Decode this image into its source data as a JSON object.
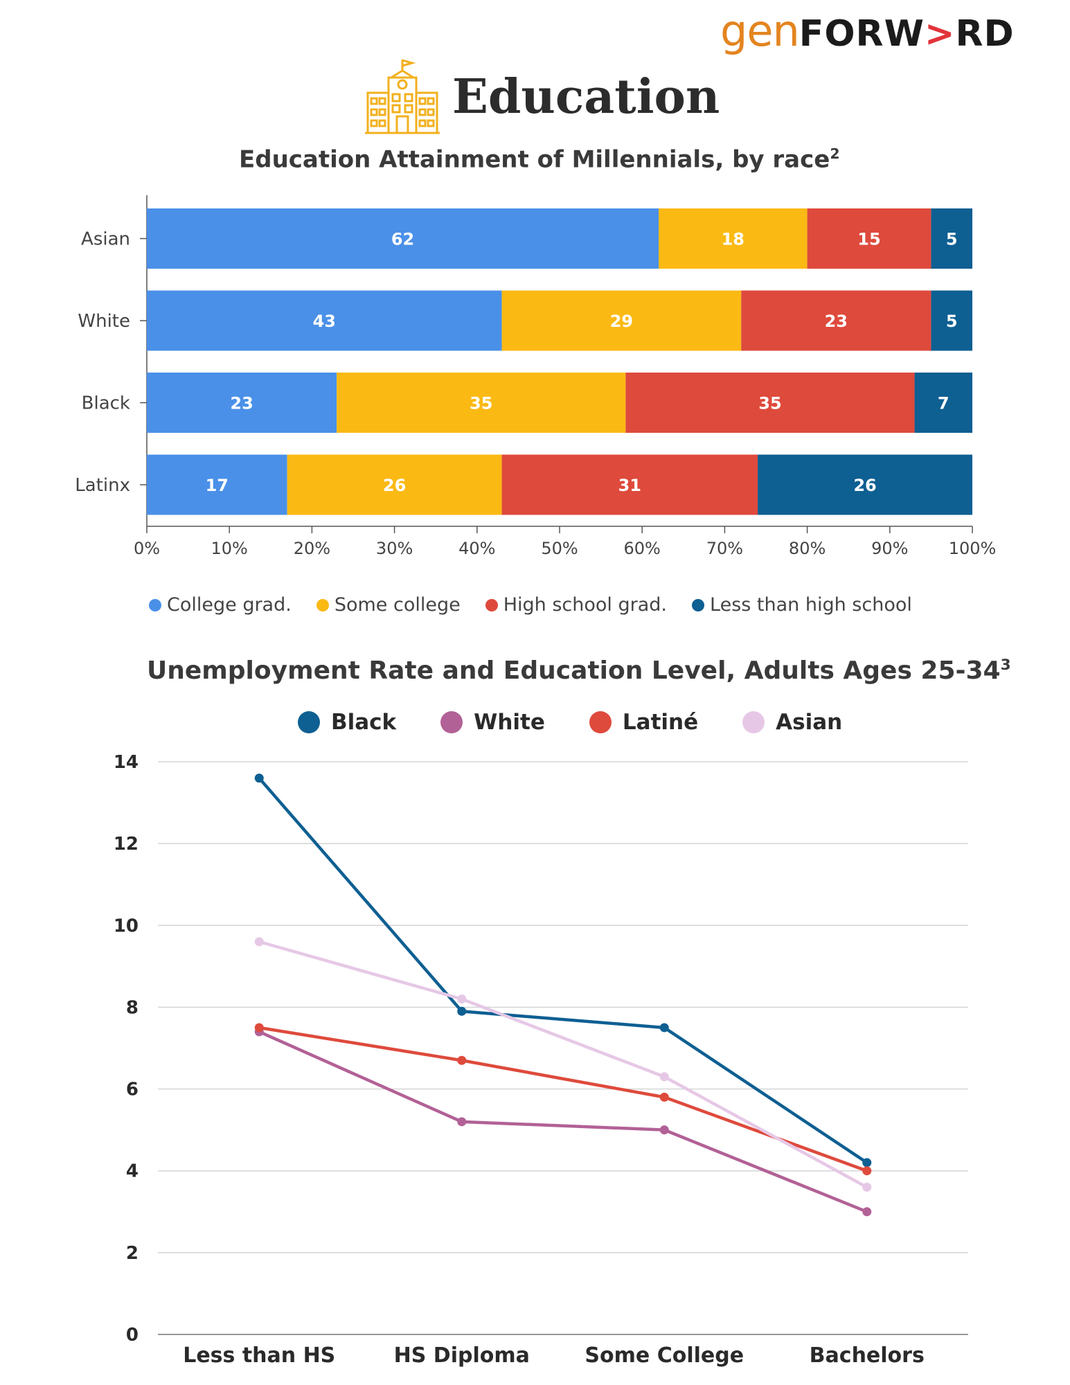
{
  "logo": {
    "part1": "gen",
    "part2a": "FORW",
    "part2b": ">",
    "part2c": "RD"
  },
  "header": {
    "title": "Education",
    "icon": "school-building-icon",
    "icon_color": "#f2b01e"
  },
  "chart_data": [
    {
      "type": "bar",
      "orientation": "horizontal",
      "stacked": true,
      "title": "Education Attainment of Millennials, by race",
      "title_footnote": "2",
      "categories": [
        "Asian",
        "White",
        "Black",
        "Latinx"
      ],
      "series": [
        {
          "name": "College grad.",
          "color": "#4a90e8",
          "values": [
            62,
            43,
            23,
            17
          ]
        },
        {
          "name": "Some college",
          "color": "#fbb914",
          "values": [
            18,
            29,
            35,
            26
          ]
        },
        {
          "name": "High school grad.",
          "color": "#de4a3c",
          "values": [
            15,
            23,
            35,
            31
          ]
        },
        {
          "name": "Less than high school",
          "color": "#0e5f92",
          "values": [
            5,
            5,
            7,
            26
          ]
        }
      ],
      "xlim": [
        0,
        100
      ],
      "xticks": [
        "0%",
        "10%",
        "20%",
        "30%",
        "40%",
        "50%",
        "60%",
        "70%",
        "80%",
        "90%",
        "100%"
      ],
      "legend_position": "bottom",
      "grid": false
    },
    {
      "type": "line",
      "title": "Unemployment Rate and Education Level, Adults Ages 25-34",
      "title_footnote": "3",
      "categories": [
        "Less than HS",
        "HS Diploma",
        "Some College",
        "Bachelors"
      ],
      "series": [
        {
          "name": "Black",
          "color": "#0e5f92",
          "values": [
            13.6,
            7.9,
            7.5,
            4.2
          ]
        },
        {
          "name": "White",
          "color": "#b26196",
          "values": [
            7.4,
            5.2,
            5.0,
            3.0
          ]
        },
        {
          "name": "Latiné",
          "color": "#de4a3c",
          "values": [
            7.5,
            6.7,
            5.8,
            4.0
          ]
        },
        {
          "name": "Asian",
          "color": "#e6c8e6",
          "values": [
            9.6,
            8.2,
            6.3,
            3.6
          ]
        }
      ],
      "ylim": [
        0,
        14
      ],
      "yticks": [
        "0",
        "2",
        "4",
        "6",
        "8",
        "10",
        "12",
        "14"
      ],
      "legend_position": "top",
      "grid": true
    }
  ]
}
